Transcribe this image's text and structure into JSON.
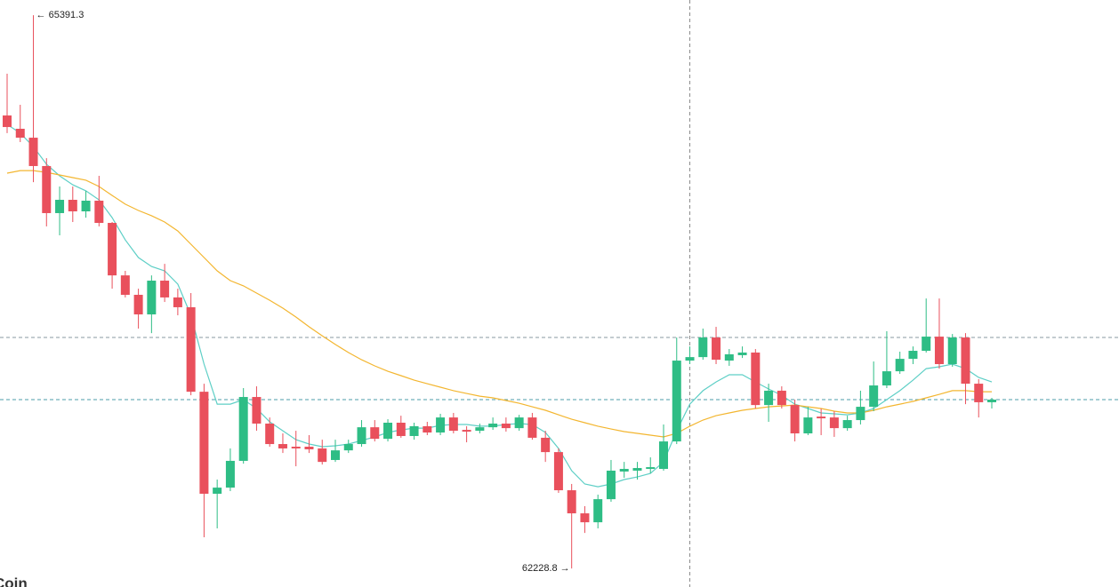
{
  "chart_data": {
    "type": "candlestick",
    "watermark": "Coin",
    "up_color": "#2ebd85",
    "down_color": "#e9505c",
    "ylim": [
      62123,
      65478
    ],
    "open": [
      64818,
      64742,
      64691,
      64529,
      64260,
      64336,
      64270,
      64331,
      64204,
      63904,
      63793,
      63681,
      63874,
      63778,
      63722,
      63239,
      62656,
      62691,
      62844,
      63209,
      63057,
      62940,
      62925,
      62925,
      62915,
      62849,
      62904,
      62940,
      63036,
      62970,
      63062,
      62986,
      63042,
      63006,
      63092,
      63021,
      63016,
      63036,
      63057,
      63031,
      63092,
      62976,
      62894,
      62676,
      62544,
      62493,
      62625,
      62783,
      62788,
      62798,
      62798,
      62955,
      63417,
      63437,
      63549,
      63417,
      63448,
      63463,
      63163,
      63245,
      63163,
      63001,
      63097,
      63092,
      63031,
      63077,
      63153,
      63275,
      63356,
      63427,
      63473,
      63554,
      63397,
      63549,
      63285,
      63179
    ],
    "high": [
      65057,
      64879,
      65391.3,
      64574,
      64412,
      64412,
      64387,
      64473,
      64209,
      63930,
      63828,
      63904,
      63970,
      63828,
      63803,
      63285,
      62737,
      62915,
      63260,
      63270,
      63092,
      63001,
      63016,
      62991,
      62965,
      62965,
      62965,
      63077,
      63077,
      63082,
      63102,
      63062,
      63067,
      63113,
      63118,
      63042,
      63057,
      63092,
      63092,
      63107,
      63118,
      63016,
      62915,
      62712,
      62585,
      62651,
      62849,
      62838,
      62838,
      62864,
      63052,
      63549,
      63498,
      63600,
      63610,
      63483,
      63498,
      63483,
      63285,
      63270,
      63194,
      63153,
      63143,
      63128,
      63102,
      63245,
      63412,
      63585,
      63468,
      63498,
      63772,
      63772,
      63569,
      63574,
      63311,
      63204
    ],
    "low": [
      64717,
      64666,
      64437,
      64184,
      64133,
      64209,
      64234,
      64184,
      63828,
      63778,
      63600,
      63574,
      63752,
      63676,
      63219,
      62407,
      62458,
      62671,
      62828,
      63016,
      62925,
      62889,
      62813,
      62889,
      62823,
      62838,
      62889,
      62925,
      62955,
      62955,
      62976,
      62965,
      62991,
      62991,
      63001,
      62950,
      63001,
      63021,
      63011,
      63016,
      62965,
      62838,
      62661,
      62228.8,
      62432,
      62458,
      62610,
      62747,
      62737,
      62772,
      62788,
      62940,
      63397,
      63422,
      63397,
      63387,
      63432,
      63143,
      63067,
      63143,
      62955,
      62991,
      62991,
      62981,
      63016,
      63052,
      63128,
      63260,
      63341,
      63397,
      63463,
      63371,
      63382,
      63168,
      63092,
      63143
    ],
    "close": [
      64752,
      64691,
      64529,
      64260,
      64336,
      64270,
      64331,
      64204,
      63904,
      63793,
      63681,
      63874,
      63778,
      63722,
      63239,
      62656,
      62691,
      62844,
      63209,
      63057,
      62940,
      62915,
      62915,
      62910,
      62838,
      62904,
      62940,
      63036,
      62970,
      63062,
      62986,
      63042,
      63006,
      63092,
      63016,
      63011,
      63036,
      63057,
      63031,
      63092,
      62976,
      62894,
      62676,
      62544,
      62493,
      62625,
      62788,
      62798,
      62803,
      62808,
      62955,
      63417,
      63437,
      63549,
      63422,
      63453,
      63463,
      63163,
      63245,
      63163,
      63001,
      63092,
      63087,
      63031,
      63077,
      63153,
      63275,
      63356,
      63427,
      63473,
      63554,
      63397,
      63549,
      63285,
      63179,
      63194
    ],
    "lines": [
      {
        "color": "#5ecfc6",
        "values": [
          64767,
          64717,
          64640,
          64539,
          64473,
          64422,
          64387,
          64336,
          64234,
          64107,
          64006,
          63955,
          63930,
          63854,
          63676,
          63397,
          63168,
          63168,
          63194,
          63143,
          63067,
          63016,
          62965,
          62940,
          62925,
          62930,
          62940,
          62960,
          62981,
          63006,
          63021,
          63031,
          63031,
          63047,
          63052,
          63052,
          63042,
          63042,
          63052,
          63057,
          63052,
          63006,
          62915,
          62788,
          62712,
          62696,
          62712,
          62737,
          62752,
          62772,
          62838,
          63016,
          63168,
          63245,
          63295,
          63336,
          63336,
          63295,
          63255,
          63219,
          63168,
          63143,
          63118,
          63113,
          63107,
          63118,
          63143,
          63194,
          63245,
          63305,
          63371,
          63382,
          63397,
          63371,
          63321,
          63295
        ]
      },
      {
        "color": "#f3b630",
        "values": [
          64488,
          64503,
          64503,
          64493,
          64478,
          64463,
          64448,
          64412,
          64361,
          64311,
          64275,
          64245,
          64209,
          64158,
          64082,
          64006,
          63930,
          63874,
          63844,
          63803,
          63762,
          63717,
          63666,
          63610,
          63559,
          63509,
          63463,
          63422,
          63387,
          63356,
          63331,
          63305,
          63285,
          63265,
          63245,
          63229,
          63214,
          63204,
          63189,
          63173,
          63153,
          63133,
          63107,
          63082,
          63062,
          63042,
          63026,
          63011,
          63001,
          62991,
          62981,
          63001,
          63042,
          63077,
          63102,
          63118,
          63133,
          63143,
          63153,
          63158,
          63163,
          63153,
          63143,
          63128,
          63118,
          63118,
          63133,
          63153,
          63168,
          63184,
          63204,
          63224,
          63245,
          63245,
          63239,
          63239
        ]
      }
    ],
    "price_lines": [
      63549,
      63194
    ]
  }
}
